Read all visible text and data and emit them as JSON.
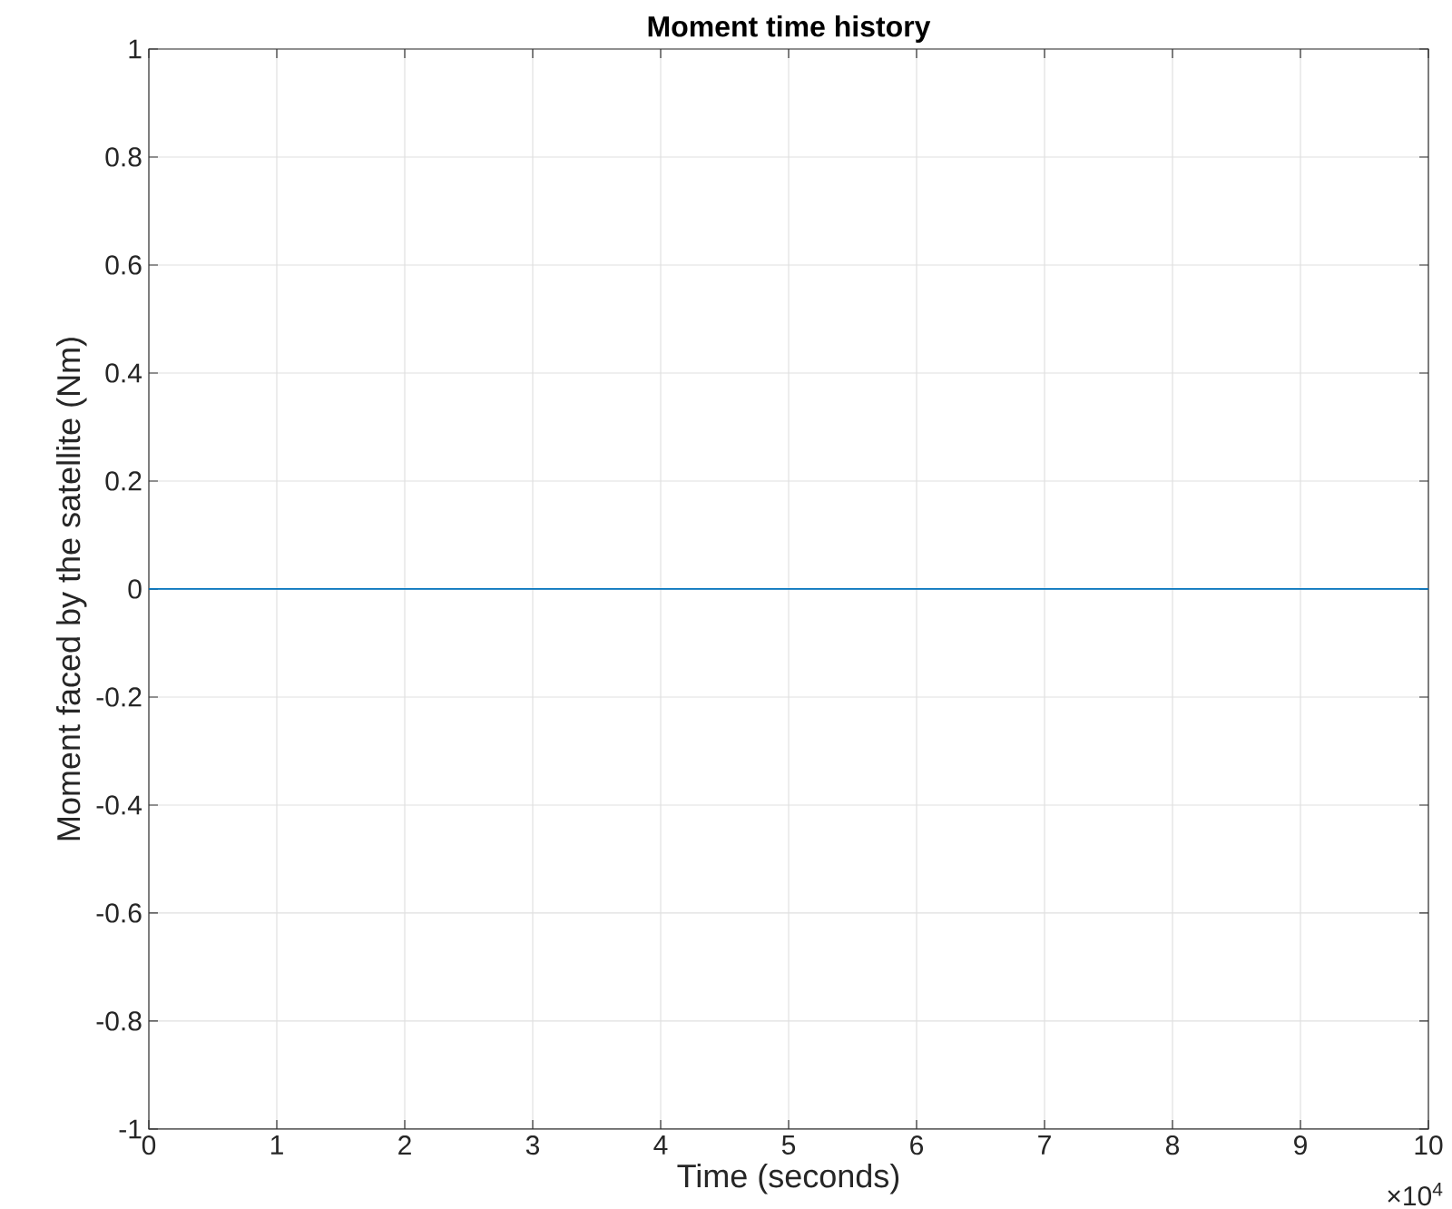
{
  "chart_data": {
    "type": "line",
    "title": "Moment time history",
    "xlabel": "Time (seconds)",
    "ylabel": "Moment faced by the satellite (Nm)",
    "series": [
      {
        "color": "#0072bd",
        "x": [
          0,
          10
        ],
        "values": [
          0,
          0
        ]
      }
    ],
    "xlim": [
      0,
      10
    ],
    "ylim": [
      -1,
      1
    ],
    "xticks": [
      0,
      1,
      2,
      3,
      4,
      5,
      6,
      7,
      8,
      9,
      10
    ],
    "yticks": [
      -1,
      -0.8,
      -0.6,
      -0.4,
      -0.2,
      0,
      0.2,
      0.4,
      0.6,
      0.8,
      1
    ],
    "grid": true,
    "annotations": [
      "×10$^{4}$"
    ]
  }
}
